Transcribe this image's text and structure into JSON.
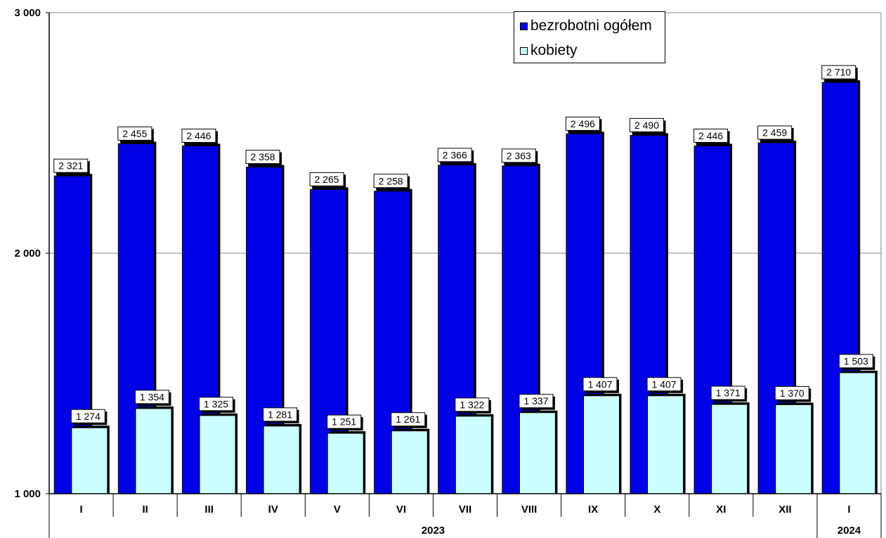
{
  "chart_data": {
    "type": "bar",
    "title": "",
    "xlabel": "",
    "ylabel": "",
    "ylim": [
      1000,
      3000
    ],
    "y_ticks": [
      1000,
      2000,
      3000
    ],
    "y_tick_labels": [
      "1 000",
      "2 000",
      "3 000"
    ],
    "grid": "horizontal",
    "legend_position": "top-right",
    "categories": [
      "I",
      "II",
      "III",
      "IV",
      "V",
      "VI",
      "VII",
      "VIII",
      "IX",
      "X",
      "XI",
      "XII",
      "I"
    ],
    "bold_categories": [
      6,
      7,
      8,
      9,
      10,
      11,
      12
    ],
    "year_groups": [
      {
        "label": "2023",
        "start": 0,
        "end": 11,
        "bold": true
      },
      {
        "label": "2024",
        "start": 12,
        "end": 12,
        "bold": true
      }
    ],
    "series": [
      {
        "name": "bezrobotni ogółem",
        "color": "#0000e6",
        "values": [
          2321,
          2455,
          2446,
          2358,
          2265,
          2258,
          2366,
          2363,
          2496,
          2490,
          2446,
          2459,
          2710
        ],
        "labels": [
          "2 321",
          "2 455",
          "2 446",
          "2 358",
          "2 265",
          "2 258",
          "2 366",
          "2 363",
          "2 496",
          "2 490",
          "2 446",
          "2 459",
          "2 710"
        ]
      },
      {
        "name": "kobiety",
        "color": "#ccffff",
        "values": [
          1274,
          1354,
          1325,
          1281,
          1251,
          1261,
          1322,
          1337,
          1407,
          1407,
          1371,
          1370,
          1503
        ],
        "labels": [
          "1 274",
          "1 354",
          "1 325",
          "1 281",
          "1 251",
          "1 261",
          "1 322",
          "1 337",
          "1 407",
          "1 407",
          "1 371",
          "1 370",
          "1 503"
        ]
      }
    ]
  }
}
